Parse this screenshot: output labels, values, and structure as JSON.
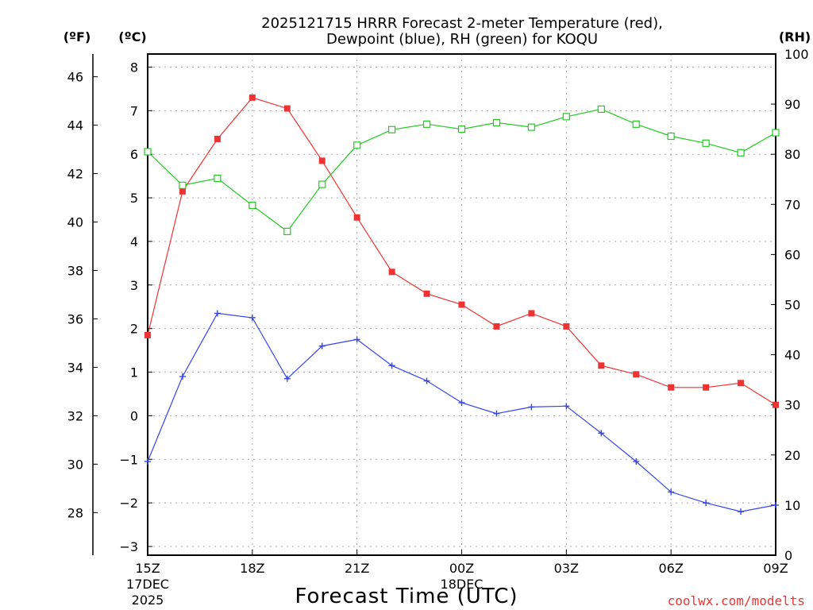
{
  "chart_data": {
    "type": "line",
    "title_line1": "2025121715 HRRR Forecast 2-meter Temperature (red),",
    "title_line2": "Dewpoint (blue), RH (green) for KOQU",
    "xlabel": "Forecast Time (UTC)",
    "credit": "coolwx.com/modelts",
    "units": {
      "fahrenheit": "(ºF)",
      "celsius": "(ºC)",
      "rh": "(RH)"
    },
    "x": [
      0,
      1,
      2,
      3,
      4,
      5,
      6,
      7,
      8,
      9,
      10,
      11,
      12,
      13,
      14,
      15,
      16,
      17,
      18
    ],
    "xlim": [
      0,
      18
    ],
    "x_ticks": [
      {
        "x": 0,
        "label": "15Z",
        "sub1": "17DEC",
        "sub2": "2025"
      },
      {
        "x": 3,
        "label": "18Z"
      },
      {
        "x": 6,
        "label": "21Z"
      },
      {
        "x": 9,
        "label": "00Z",
        "sub1": "18DEC"
      },
      {
        "x": 12,
        "label": "03Z"
      },
      {
        "x": 15,
        "label": "06Z"
      },
      {
        "x": 18,
        "label": "09Z"
      }
    ],
    "celsius_axis": {
      "ylim": [
        -3.2,
        8.3
      ],
      "ticks": [
        "-3",
        "-2",
        "-1",
        "0",
        "1",
        "2",
        "3",
        "4",
        "5",
        "6",
        "7",
        "8"
      ]
    },
    "fahrenheit_axis": {
      "ticks": [
        "28",
        "30",
        "32",
        "34",
        "36",
        "38",
        "40",
        "42",
        "44",
        "46"
      ]
    },
    "rh_axis": {
      "ylim": [
        0,
        100
      ],
      "ticks": [
        "0",
        "10",
        "20",
        "30",
        "40",
        "50",
        "60",
        "70",
        "80",
        "90",
        "100"
      ]
    },
    "series": [
      {
        "name": "Temperature",
        "axis": "celsius",
        "color": "#ee3333",
        "marker": "filled-square",
        "values": [
          1.85,
          5.15,
          6.35,
          7.3,
          7.05,
          5.85,
          4.55,
          3.3,
          2.8,
          2.55,
          2.05,
          2.35,
          2.05,
          1.15,
          0.95,
          0.65,
          0.65,
          0.75,
          0.25
        ]
      },
      {
        "name": "Dewpoint",
        "axis": "celsius",
        "color": "#3344ee",
        "marker": "plus",
        "values": [
          -1.05,
          0.9,
          2.35,
          2.25,
          0.85,
          1.6,
          1.75,
          1.15,
          0.8,
          0.3,
          0.05,
          0.2,
          0.22,
          -0.4,
          -1.05,
          -1.75,
          -2.0,
          -2.2,
          -2.05
        ]
      },
      {
        "name": "RH",
        "axis": "rh",
        "color": "#22cc22",
        "marker": "open-square",
        "values": [
          80.5,
          73.8,
          75.2,
          69.8,
          64.6,
          74.0,
          81.8,
          84.9,
          86.0,
          85.0,
          86.3,
          85.4,
          87.5,
          89.0,
          86.0,
          83.6,
          82.2,
          80.3,
          84.3
        ]
      }
    ]
  }
}
